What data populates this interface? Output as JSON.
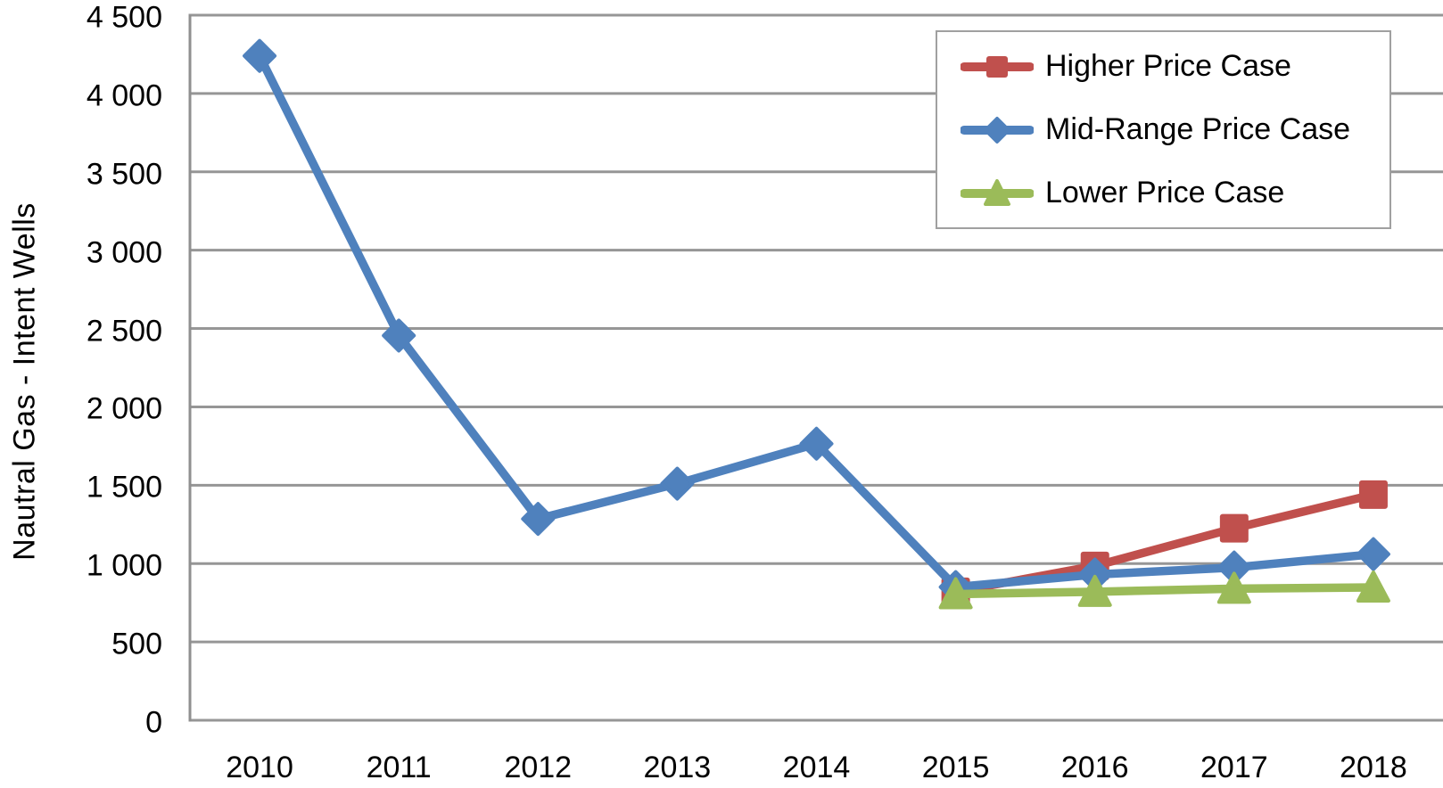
{
  "chart_data": {
    "type": "line",
    "title": "",
    "xlabel": "",
    "ylabel": "Nautral Gas - Intent Wells",
    "categories": [
      "2010",
      "2011",
      "2012",
      "2013",
      "2014",
      "2015",
      "2016",
      "2017",
      "2018"
    ],
    "ylim": [
      0,
      4500
    ],
    "ytick_step": 500,
    "ytick_labels": [
      "0",
      "500",
      "1 000",
      "1 500",
      "2 000",
      "2 500",
      "3 000",
      "3 500",
      "4 000",
      "4 500"
    ],
    "grid": "horizontal",
    "legend_position": "top-right",
    "series": [
      {
        "name": "Higher Price Case",
        "color": "#C0504D",
        "marker": "square",
        "values": [
          null,
          null,
          null,
          null,
          null,
          820,
          985,
          1225,
          1440
        ]
      },
      {
        "name": "Mid-Range Price Case",
        "color": "#4F81BD",
        "marker": "diamond",
        "values": [
          4240,
          2455,
          1285,
          1510,
          1765,
          850,
          930,
          975,
          1060
        ]
      },
      {
        "name": "Lower Price Case",
        "color": "#9BBB59",
        "marker": "triangle",
        "values": [
          null,
          null,
          null,
          null,
          null,
          805,
          820,
          840,
          848
        ]
      }
    ],
    "colors": {
      "gridline": "#969696",
      "axis": "#8f8f8f",
      "text": "#000000",
      "legend_border": "#a0a0a0"
    }
  }
}
